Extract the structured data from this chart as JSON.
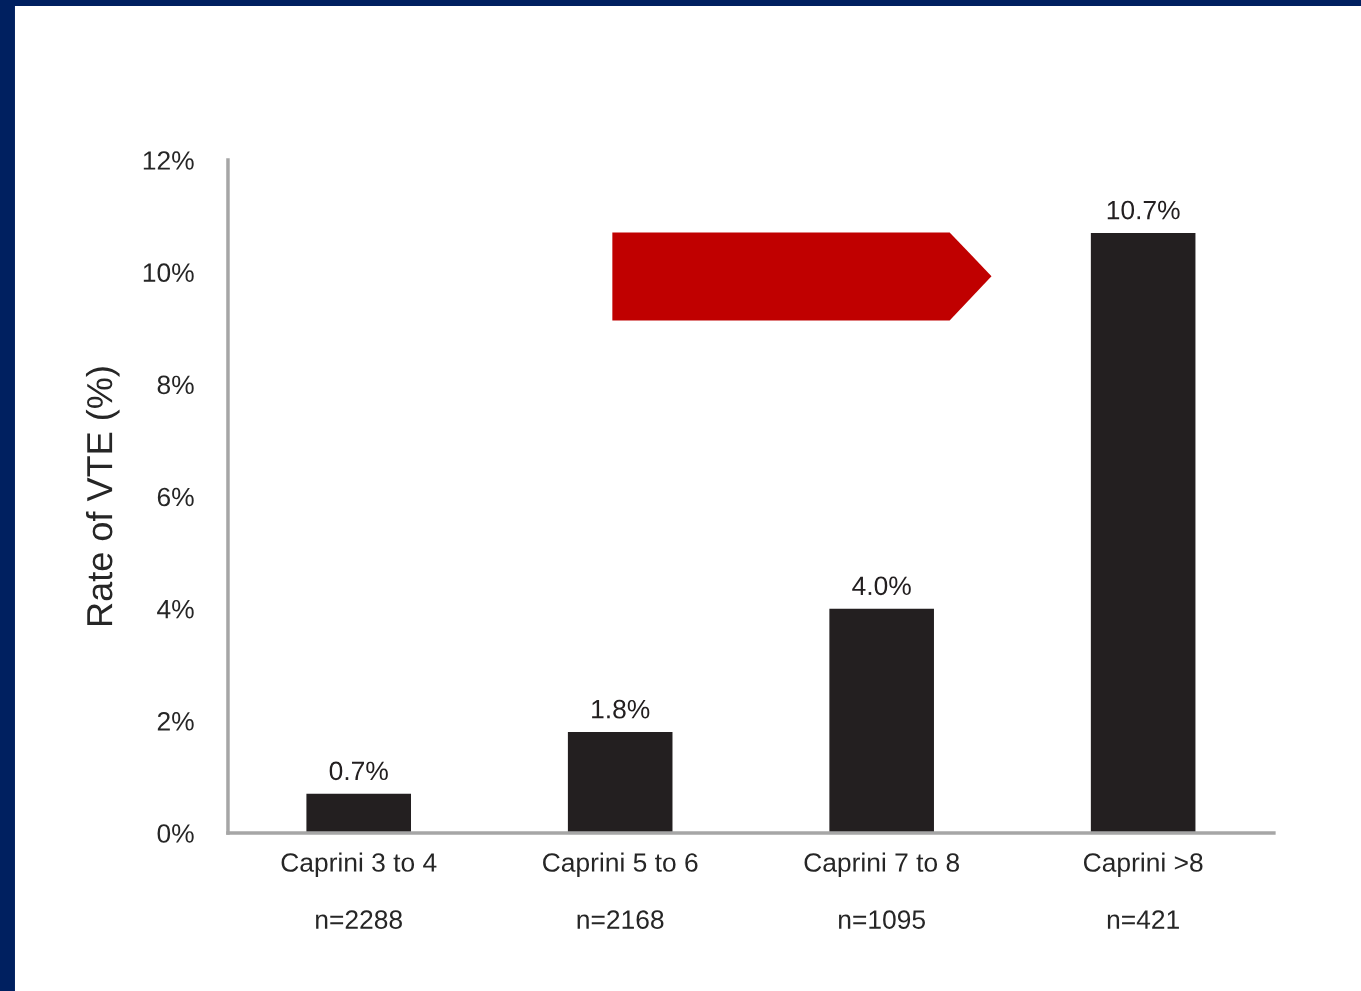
{
  "chart_data": {
    "type": "bar",
    "ylabel": "Rate of VTE (%)",
    "categories": [
      "Caprini 3 to 4\nn=2288",
      "Caprini 5 to 6\nn=2168",
      "Caprini 7 to 8\nn=1095",
      "Caprini >8\nn=421"
    ],
    "values": [
      0.7,
      1.8,
      4.0,
      10.7
    ],
    "value_labels": [
      "0.7%",
      "1.8%",
      "4.0%",
      "10.7%"
    ],
    "color": "#231f20",
    "ylim": [
      0,
      12
    ],
    "yticks": [
      {
        "value": 0,
        "label": "0%"
      },
      {
        "value": 2,
        "label": "2%"
      },
      {
        "value": 4,
        "label": "4%"
      },
      {
        "value": 6,
        "label": "6%"
      },
      {
        "value": 8,
        "label": "8%"
      },
      {
        "value": 10,
        "label": "10%"
      },
      {
        "value": 12,
        "label": "12%"
      }
    ],
    "grid": false
  }
}
